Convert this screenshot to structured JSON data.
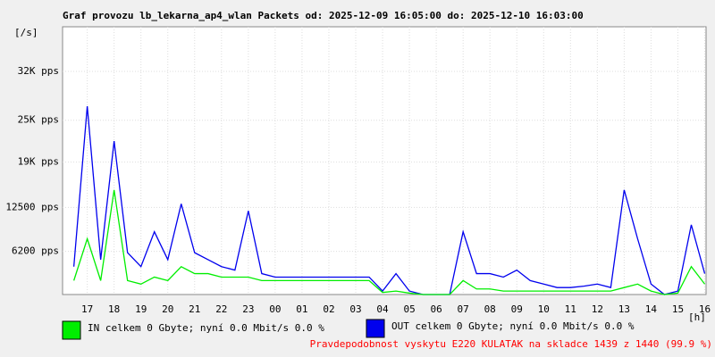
{
  "chart_data": {
    "type": "line",
    "title": "Graf provozu lb_lekarna_ap4_wlan Packets od: 2025-12-09 16:05:00 do: 2025-12-10 16:03:00",
    "y_label": "[/s]",
    "x_label": "[h]",
    "x": [
      16.5,
      17,
      17.5,
      18,
      18.5,
      19,
      19.5,
      20,
      20.5,
      21,
      21.5,
      22,
      22.5,
      23,
      23.5,
      24,
      24.5,
      25,
      25.5,
      26,
      26.5,
      27,
      27.5,
      28,
      28.5,
      29,
      29.5,
      30,
      30.5,
      31,
      31.5,
      32,
      32.5,
      33,
      33.5,
      34,
      34.5,
      35,
      35.5,
      36,
      36.5,
      37,
      37.5,
      38,
      38.5,
      39,
      39.5,
      40
    ],
    "series": [
      {
        "name": "OUT celkem 0 Gbyte; nyní    0.0 Mbit/s 0.0 %",
        "color": "#0000ee",
        "values": [
          4000,
          27000,
          5000,
          22000,
          6000,
          4000,
          9000,
          5000,
          13000,
          6000,
          5000,
          4000,
          3500,
          12000,
          3000,
          2500,
          2500,
          2500,
          2500,
          2500,
          2500,
          2500,
          2500,
          500,
          3000,
          500,
          0,
          0,
          0,
          9000,
          3000,
          3000,
          2500,
          3500,
          2000,
          1500,
          1000,
          1000,
          1200,
          1500,
          1000,
          15000,
          8000,
          1500,
          0,
          500,
          10000,
          3000
        ]
      },
      {
        "name": "IN celkem 0 Gbyte; nyní    0.0 Mbit/s 0.0 %",
        "color": "#00ee00",
        "values": [
          2000,
          8000,
          2000,
          15000,
          2000,
          1500,
          2500,
          2000,
          4000,
          3000,
          3000,
          2500,
          2500,
          2500,
          2000,
          2000,
          2000,
          2000,
          2000,
          2000,
          2000,
          2000,
          2000,
          300,
          500,
          200,
          0,
          0,
          0,
          2000,
          800,
          800,
          500,
          500,
          500,
          500,
          500,
          500,
          500,
          500,
          500,
          1000,
          1500,
          500,
          0,
          200,
          4000,
          1500
        ]
      }
    ],
    "xlim": [
      16.08,
      40.05
    ],
    "xticks": [
      17,
      18,
      19,
      20,
      21,
      22,
      23,
      {
        "value": 24,
        "label": "00"
      },
      {
        "value": 25,
        "label": "01"
      },
      {
        "value": 26,
        "label": "02"
      },
      {
        "value": 27,
        "label": "03"
      },
      {
        "value": 28,
        "label": "04"
      },
      {
        "value": 29,
        "label": "05"
      },
      {
        "value": 30,
        "label": "06"
      },
      {
        "value": 31,
        "label": "07"
      },
      {
        "value": 32,
        "label": "08"
      },
      {
        "value": 33,
        "label": "09"
      },
      {
        "value": 34,
        "label": "10"
      },
      {
        "value": 35,
        "label": "11"
      },
      {
        "value": 36,
        "label": "12"
      },
      {
        "value": 37,
        "label": "13"
      },
      {
        "value": 38,
        "label": "14"
      },
      {
        "value": 39,
        "label": "15"
      },
      {
        "value": 40,
        "label": "16"
      }
    ],
    "ylim": [
      0,
      38400
    ],
    "yticks": [
      {
        "value": 6200,
        "label": "6200 pps"
      },
      {
        "value": 12500,
        "label": "12500 pps"
      },
      {
        "value": 19000,
        "label": "19K pps"
      },
      {
        "value": 25000,
        "label": "25K pps"
      },
      {
        "value": 32000,
        "label": "32K pps"
      }
    ],
    "grid": true,
    "footer": "Pravdepodobnost vyskytu E220 KULATAK na skladce 1439 z 1440 (99.9 %)"
  }
}
